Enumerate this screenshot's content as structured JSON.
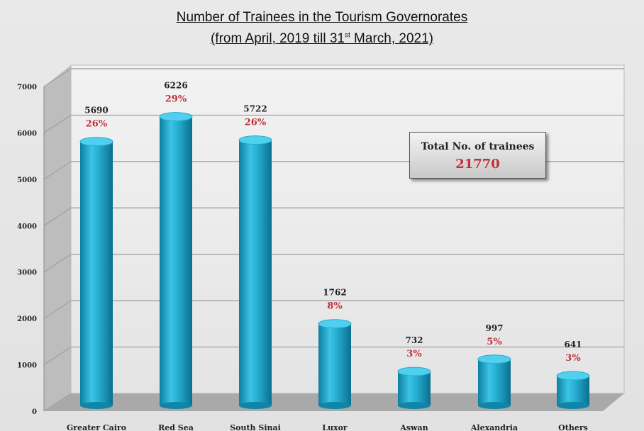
{
  "chart_data": {
    "type": "bar",
    "title": "Number of Trainees in the Tourism Governorates",
    "subtitle_parts": {
      "pre": "(from April, 2019 till 31",
      "sup": "st",
      "post": " March, 2021)"
    },
    "categories": [
      "Greater Cairo",
      "Red Sea",
      "South Sinai",
      "Luxor",
      "Aswan",
      "Alexandria",
      "Others"
    ],
    "values": [
      5690,
      6226,
      5722,
      1762,
      732,
      997,
      641
    ],
    "percent_labels": [
      "26%",
      "29%",
      "26%",
      "8%",
      "3%",
      "5%",
      "3%"
    ],
    "yticks": [
      "0",
      "1000",
      "2000",
      "3000",
      "4000",
      "5000",
      "6000",
      "7000"
    ],
    "ylim": [
      0,
      7000
    ],
    "grid": true,
    "style": "3d-cylinder",
    "colors": {
      "bar": "#1fa6c9",
      "percent": "#c0303a"
    }
  },
  "total_box": {
    "label": "Total No. of trainees",
    "value": "21770"
  }
}
